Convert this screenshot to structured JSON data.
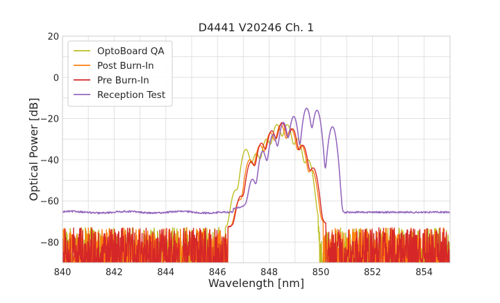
{
  "chart_data": {
    "type": "line",
    "title": "D4441 V20246 Ch. 1",
    "xlabel": "Wavelength [nm]",
    "ylabel": "Optical Power [dB]",
    "xlim": [
      840,
      855
    ],
    "ylim": [
      -90,
      20
    ],
    "xticks": [
      840,
      842,
      844,
      846,
      848,
      850,
      852,
      854
    ],
    "yticks": [
      -80,
      -60,
      -40,
      -20,
      0,
      20
    ],
    "grid": true,
    "legend_position": "top-left",
    "series": [
      {
        "name": "OptoBoard QA",
        "color": "#bcbd22",
        "peaks": [
          [
            846.7,
            -55
          ],
          [
            847.1,
            -35
          ],
          [
            847.5,
            -37
          ],
          [
            847.9,
            -30
          ],
          [
            848.3,
            -23
          ],
          [
            848.7,
            -23
          ],
          [
            849.1,
            -30
          ],
          [
            849.5,
            -40
          ]
        ],
        "floor": -82,
        "noise_band": [
          -90,
          -73
        ],
        "skirt": [
          846.3,
          849.9
        ]
      },
      {
        "name": "Post Burn-In",
        "color": "#ff7f0e",
        "peaks": [
          [
            846.85,
            -60
          ],
          [
            847.25,
            -40
          ],
          [
            847.65,
            -33
          ],
          [
            848.05,
            -27
          ],
          [
            848.45,
            -23
          ],
          [
            848.85,
            -25
          ],
          [
            849.25,
            -33
          ],
          [
            849.65,
            -45
          ]
        ],
        "floor": -82,
        "noise_band": [
          -90,
          -73
        ],
        "skirt": [
          846.4,
          850.1
        ]
      },
      {
        "name": "Pre Burn-In",
        "color": "#d62728",
        "peaks": [
          [
            846.9,
            -58
          ],
          [
            847.3,
            -41
          ],
          [
            847.7,
            -32
          ],
          [
            848.1,
            -26
          ],
          [
            848.5,
            -22
          ],
          [
            848.9,
            -25
          ],
          [
            849.3,
            -33
          ],
          [
            849.7,
            -44
          ]
        ],
        "floor": -82,
        "noise_band": [
          -90,
          -73
        ],
        "skirt": [
          846.4,
          850.2
        ]
      },
      {
        "name": "Reception Test",
        "color": "#9467bd",
        "peaks": [
          [
            847.35,
            -50
          ],
          [
            847.75,
            -36
          ],
          [
            848.15,
            -28
          ],
          [
            848.55,
            -22
          ],
          [
            848.95,
            -19
          ],
          [
            849.45,
            -15
          ],
          [
            849.85,
            -16
          ],
          [
            850.45,
            -24
          ]
        ],
        "floor": -65.5,
        "noise_band": [
          -66.5,
          -64.5
        ],
        "skirt": [
          846.6,
          850.8
        ]
      }
    ]
  }
}
